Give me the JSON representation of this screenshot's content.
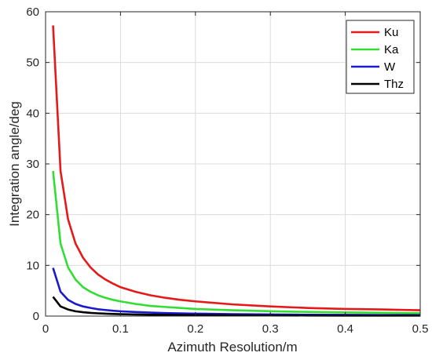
{
  "chart_data": {
    "type": "line",
    "title": "",
    "xlabel": "Azimuth Resolution/m",
    "ylabel": "Integration angle/deg",
    "xlim": [
      0,
      0.5
    ],
    "ylim": [
      0,
      60
    ],
    "xticks": [
      0,
      0.1,
      0.2,
      0.3,
      0.4,
      0.5
    ],
    "xtick_labels": [
      "0",
      "0.1",
      "0.2",
      "0.3",
      "0.4",
      "0.5"
    ],
    "yticks": [
      0,
      10,
      20,
      30,
      40,
      50,
      60
    ],
    "ytick_labels": [
      "0",
      "10",
      "20",
      "30",
      "40",
      "50",
      "60"
    ],
    "grid": true,
    "legend_position": "top-right",
    "x": [
      0.01,
      0.02,
      0.03,
      0.04,
      0.05,
      0.06,
      0.07,
      0.08,
      0.09,
      0.1,
      0.12,
      0.14,
      0.16,
      0.18,
      0.2,
      0.25,
      0.3,
      0.35,
      0.4,
      0.45,
      0.5
    ],
    "series": [
      {
        "name": "Ku",
        "color": "#e6191a",
        "values": [
          57.3,
          28.6,
          19.1,
          14.3,
          11.5,
          9.6,
          8.2,
          7.2,
          6.4,
          5.7,
          4.8,
          4.1,
          3.6,
          3.2,
          2.9,
          2.3,
          1.9,
          1.6,
          1.4,
          1.3,
          1.15
        ]
      },
      {
        "name": "Ka",
        "color": "#33dd33",
        "values": [
          28.6,
          14.3,
          9.6,
          7.2,
          5.7,
          4.8,
          4.1,
          3.6,
          3.2,
          2.9,
          2.4,
          2.0,
          1.8,
          1.6,
          1.4,
          1.15,
          0.95,
          0.82,
          0.72,
          0.64,
          0.57
        ]
      },
      {
        "name": "W",
        "color": "#1a1acc",
        "values": [
          9.5,
          4.8,
          3.2,
          2.4,
          1.9,
          1.6,
          1.35,
          1.2,
          1.05,
          0.95,
          0.8,
          0.68,
          0.6,
          0.53,
          0.48,
          0.38,
          0.32,
          0.27,
          0.24,
          0.21,
          0.19
        ]
      },
      {
        "name": "Thz",
        "color": "#000000",
        "values": [
          3.8,
          1.9,
          1.3,
          0.95,
          0.76,
          0.63,
          0.54,
          0.48,
          0.42,
          0.38,
          0.32,
          0.27,
          0.24,
          0.21,
          0.19,
          0.15,
          0.13,
          0.11,
          0.095,
          0.085,
          0.076
        ]
      }
    ]
  }
}
